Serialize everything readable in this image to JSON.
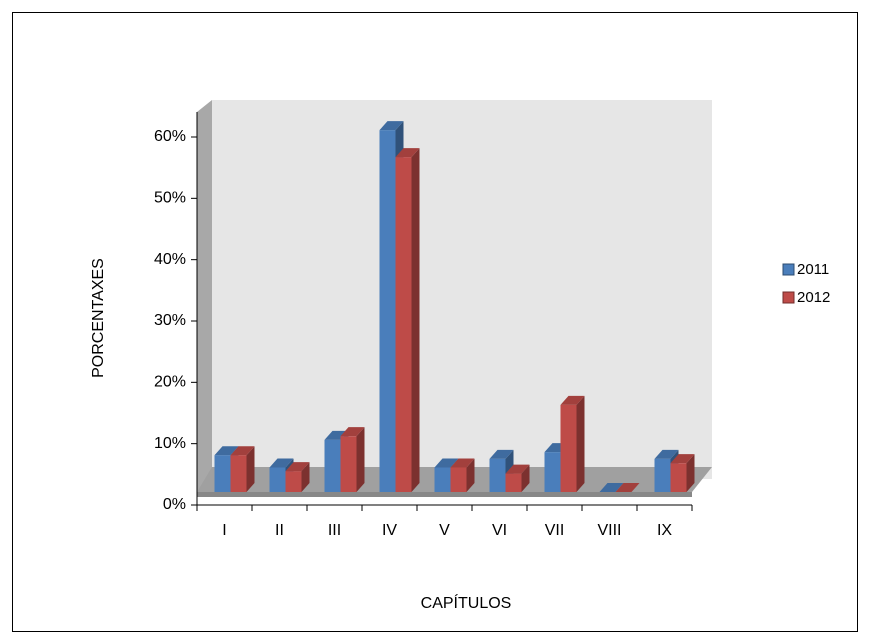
{
  "chart_data": {
    "type": "bar3d",
    "x_label": "CAPÍTULOS",
    "y_label": "PORCENTAXES",
    "categories": [
      "I",
      "II",
      "III",
      "IV",
      "V",
      "VI",
      "VII",
      "VIII",
      "IX"
    ],
    "series": [
      {
        "name": "2011",
        "color": "#4a7ebb",
        "values": [
          6,
          4,
          8.5,
          59,
          4,
          5.4,
          6.5,
          0,
          5.4
        ]
      },
      {
        "name": "2012",
        "color": "#be4b48",
        "values": [
          6,
          3.4,
          9.1,
          54.6,
          4,
          3,
          14.2,
          0,
          4.7
        ]
      }
    ],
    "ylim": [
      0,
      60
    ],
    "yticks": [
      {
        "value": 0,
        "label": "0%"
      },
      {
        "value": 10,
        "label": "10%"
      },
      {
        "value": 20,
        "label": "20%"
      },
      {
        "value": 30,
        "label": "30%"
      },
      {
        "value": 40,
        "label": "40%"
      },
      {
        "value": 50,
        "label": "50%"
      },
      {
        "value": 60,
        "label": "60%"
      }
    ],
    "legend": "right"
  }
}
